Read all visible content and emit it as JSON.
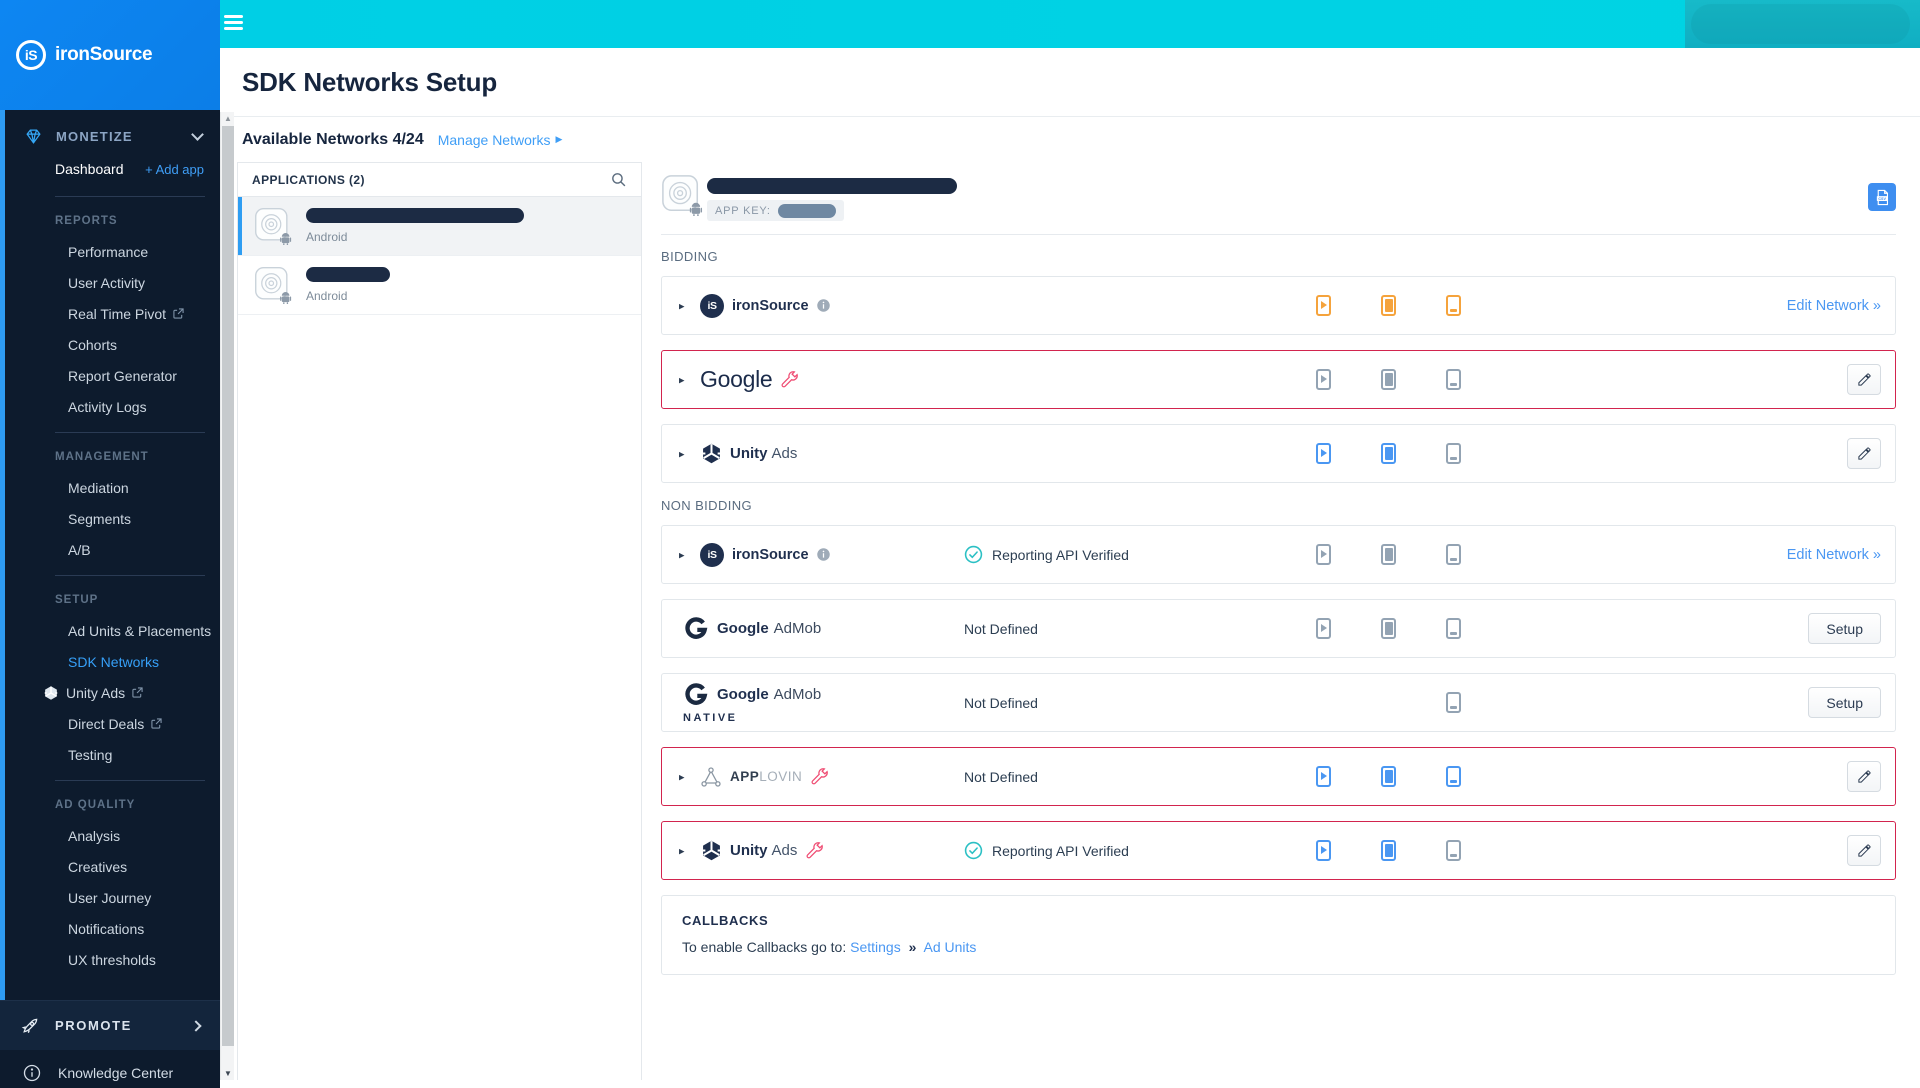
{
  "brand": {
    "name": "ironSource",
    "monogram": "iS"
  },
  "sidebar": {
    "monetize_label": "MONETIZE",
    "dashboard_label": "Dashboard",
    "add_app_label": "+ Add app",
    "sections": [
      {
        "header": "REPORTS",
        "items": [
          {
            "label": "Performance"
          },
          {
            "label": "User Activity"
          },
          {
            "label": "Real Time Pivot",
            "external": true
          },
          {
            "label": "Cohorts"
          },
          {
            "label": "Report Generator"
          },
          {
            "label": "Activity Logs"
          }
        ]
      },
      {
        "header": "MANAGEMENT",
        "items": [
          {
            "label": "Mediation"
          },
          {
            "label": "Segments"
          },
          {
            "label": "A/B"
          }
        ]
      },
      {
        "header": "SETUP",
        "items": [
          {
            "label": "Ad Units & Placements"
          },
          {
            "label": "SDK Networks",
            "active": true
          },
          {
            "label": "Unity Ads",
            "icon": "unity",
            "external": true
          },
          {
            "label": "Direct Deals",
            "external": true
          },
          {
            "label": "Testing"
          }
        ]
      },
      {
        "header": "AD QUALITY",
        "items": [
          {
            "label": "Analysis"
          },
          {
            "label": "Creatives"
          },
          {
            "label": "User Journey"
          },
          {
            "label": "Notifications"
          },
          {
            "label": "UX thresholds"
          }
        ]
      }
    ],
    "promote_label": "PROMOTE",
    "knowledge_center_label": "Knowledge Center"
  },
  "header": {
    "title": "SDK Networks Setup"
  },
  "subheader": {
    "available_label": "Available Networks 4/24",
    "manage_label": "Manage Networks"
  },
  "applications": {
    "header": "APPLICATIONS (2)",
    "items": [
      {
        "platform": "Android",
        "selected": true,
        "name_redacted": true
      },
      {
        "platform": "Android",
        "selected": false,
        "name_redacted": true
      }
    ]
  },
  "detail": {
    "app_name_redacted": true,
    "app_key_label": "APP KEY:",
    "app_key_redacted": true,
    "logos": {
      "ironsource": {
        "monogram": "iS",
        "label": "ironSource"
      },
      "google": {
        "label": "Google"
      },
      "unity": {
        "label_bold": "Unity",
        "label_rest": "Ads"
      },
      "admob": {
        "label_bold": "Google",
        "label_rest": "AdMob"
      },
      "admob_native": {
        "label_bold": "Google",
        "label_rest": "AdMob",
        "tag": "NATIVE"
      },
      "applovin": {
        "label_bold": "APP",
        "label_rest": "LOVIN"
      }
    },
    "sections": [
      {
        "label": "BIDDING",
        "rows": [
          {
            "id": "ironsource-bidding",
            "logo": "ironsource",
            "caret": true,
            "info": true,
            "wrench": false,
            "alert": false,
            "status": null,
            "units": [
              {
                "kind": "rewarded",
                "color": "orange"
              },
              {
                "kind": "interstitial",
                "color": "orange"
              },
              {
                "kind": "banner",
                "color": "orange"
              }
            ],
            "action": {
              "type": "link",
              "label": "Edit Network »"
            }
          },
          {
            "id": "google-bidding",
            "logo": "google",
            "caret": true,
            "info": false,
            "wrench": true,
            "alert": true,
            "status": null,
            "units": [
              {
                "kind": "rewarded",
                "color": "gray"
              },
              {
                "kind": "interstitial",
                "color": "gray"
              },
              {
                "kind": "banner",
                "color": "gray"
              }
            ],
            "action": {
              "type": "edit",
              "label": ""
            }
          },
          {
            "id": "unityads-bidding",
            "logo": "unity",
            "caret": true,
            "info": false,
            "wrench": false,
            "alert": false,
            "status": null,
            "units": [
              {
                "kind": "rewarded",
                "color": "blue"
              },
              {
                "kind": "interstitial",
                "color": "blue"
              },
              {
                "kind": "banner",
                "color": "gray"
              }
            ],
            "action": {
              "type": "edit",
              "label": ""
            }
          }
        ]
      },
      {
        "label": "NON BIDDING",
        "rows": [
          {
            "id": "ironsource",
            "logo": "ironsource",
            "caret": true,
            "info": true,
            "wrench": false,
            "alert": false,
            "status": {
              "verified": true,
              "label": "Reporting API Verified"
            },
            "units": [
              {
                "kind": "rewarded",
                "color": "gray"
              },
              {
                "kind": "interstitial",
                "color": "gray"
              },
              {
                "kind": "banner",
                "color": "gray"
              }
            ],
            "action": {
              "type": "link",
              "label": "Edit Network »"
            }
          },
          {
            "id": "google-admob",
            "logo": "admob",
            "caret": false,
            "info": false,
            "wrench": false,
            "alert": false,
            "status": {
              "verified": false,
              "label": "Not Defined"
            },
            "units": [
              {
                "kind": "rewarded",
                "color": "gray"
              },
              {
                "kind": "interstitial",
                "color": "gray"
              },
              {
                "kind": "banner",
                "color": "gray"
              }
            ],
            "action": {
              "type": "button",
              "label": "Setup"
            }
          },
          {
            "id": "google-admob-native",
            "logo": "admob_native",
            "caret": false,
            "info": false,
            "wrench": false,
            "alert": false,
            "status": {
              "verified": false,
              "label": "Not Defined"
            },
            "units": [
              {
                "kind": "rewarded",
                "color": "none"
              },
              {
                "kind": "interstitial",
                "color": "none"
              },
              {
                "kind": "banner",
                "color": "gray"
              }
            ],
            "action": {
              "type": "button",
              "label": "Setup"
            }
          },
          {
            "id": "applovin",
            "logo": "applovin",
            "caret": true,
            "info": false,
            "wrench": true,
            "alert": true,
            "status": {
              "verified": false,
              "label": "Not Defined"
            },
            "units": [
              {
                "kind": "rewarded",
                "color": "blue"
              },
              {
                "kind": "interstitial",
                "color": "blue"
              },
              {
                "kind": "banner",
                "color": "blue"
              }
            ],
            "action": {
              "type": "edit",
              "label": ""
            }
          },
          {
            "id": "unityads",
            "logo": "unity",
            "caret": true,
            "info": false,
            "wrench": true,
            "alert": true,
            "status": {
              "verified": true,
              "label": "Reporting API Verified"
            },
            "units": [
              {
                "kind": "rewarded",
                "color": "blue"
              },
              {
                "kind": "interstitial",
                "color": "blue"
              },
              {
                "kind": "banner",
                "color": "gray"
              }
            ],
            "action": {
              "type": "edit",
              "label": ""
            }
          }
        ]
      }
    ],
    "callbacks": {
      "title": "CALLBACKS",
      "prefix": "To enable Callbacks go to:",
      "settings_link": "Settings",
      "separator": "»",
      "ad_units_link": "Ad Units"
    }
  },
  "colors": {
    "sidebar_bg": "#0d1b2d",
    "logo_blue": "#0d84ef",
    "topbar_cyan": "#00d1e4",
    "topbar_teal": "#14b4c6",
    "accent_blue": "#3f9ef6",
    "link_blue": "#4a97f2",
    "alert_red": "#d2244e",
    "unit_orange": "#f5a33c",
    "unit_blue": "#4a97f2",
    "unit_gray": "#93a3b3",
    "check_teal": "#2bc0c4",
    "navy": "#1f2f4e"
  }
}
